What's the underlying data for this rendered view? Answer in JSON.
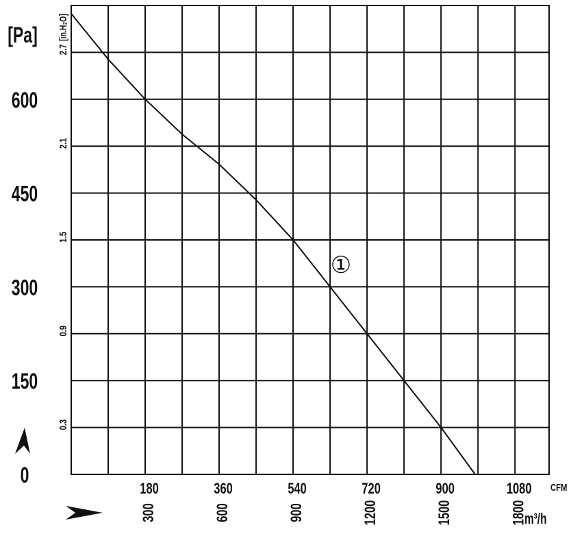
{
  "chart_data": {
    "type": "line",
    "y_label": "[Pa]",
    "y2_label": "[in.H₂O]",
    "x_label": "CFM",
    "x2_label": "m³/h",
    "curve_label": "①",
    "xlim": [
      0,
      1163
    ],
    "xticks": [
      180,
      360,
      540,
      720,
      900,
      1080
    ],
    "xminorticks": [
      90,
      270,
      450,
      630,
      810,
      990
    ],
    "x2lim": [
      0,
      1938
    ],
    "x2ticks": [
      300,
      600,
      900,
      1200,
      1500,
      1800
    ],
    "ylim": [
      0,
      750
    ],
    "yticks": [
      0,
      150,
      300,
      450,
      600
    ],
    "y2lim": [
      0,
      3.0
    ],
    "y2ticks": [
      0.3,
      0.9,
      1.5,
      2.1,
      2.7
    ],
    "grid": true,
    "series": [
      {
        "color": "#111111",
        "x": [
          0,
          90,
          180,
          270,
          360,
          450,
          540,
          630,
          720,
          810,
          900,
          983
        ],
        "values": [
          737,
          664,
          600,
          544,
          496,
          439,
          375,
          300,
          225,
          150,
          75,
          0
        ]
      }
    ]
  }
}
